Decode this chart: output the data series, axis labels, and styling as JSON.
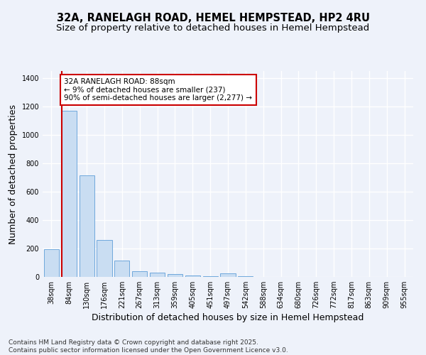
{
  "title_line1": "32A, RANELAGH ROAD, HEMEL HEMPSTEAD, HP2 4RU",
  "title_line2": "Size of property relative to detached houses in Hemel Hempstead",
  "xlabel": "Distribution of detached houses by size in Hemel Hempstead",
  "ylabel": "Number of detached properties",
  "categories": [
    "38sqm",
    "84sqm",
    "130sqm",
    "176sqm",
    "221sqm",
    "267sqm",
    "313sqm",
    "359sqm",
    "405sqm",
    "451sqm",
    "497sqm",
    "542sqm",
    "588sqm",
    "634sqm",
    "680sqm",
    "726sqm",
    "772sqm",
    "817sqm",
    "863sqm",
    "909sqm",
    "955sqm"
  ],
  "values": [
    195,
    1170,
    715,
    260,
    115,
    40,
    30,
    20,
    8,
    5,
    25,
    5,
    0,
    0,
    0,
    0,
    0,
    0,
    0,
    0,
    0
  ],
  "bar_color": "#c9ddf2",
  "bar_edge_color": "#6fa8dc",
  "red_line_bar_index": 1,
  "annotation_text": "32A RANELAGH ROAD: 88sqm\n← 9% of detached houses are smaller (237)\n90% of semi-detached houses are larger (2,277) →",
  "annotation_box_facecolor": "#ffffff",
  "annotation_border_color": "#cc0000",
  "red_line_color": "#cc0000",
  "ylim": [
    0,
    1450
  ],
  "yticks": [
    0,
    200,
    400,
    600,
    800,
    1000,
    1200,
    1400
  ],
  "footer_line1": "Contains HM Land Registry data © Crown copyright and database right 2025.",
  "footer_line2": "Contains public sector information licensed under the Open Government Licence v3.0.",
  "bg_color": "#eef2fa",
  "grid_color": "#ffffff",
  "title_fontsize": 10.5,
  "subtitle_fontsize": 9.5,
  "axis_label_fontsize": 9,
  "tick_fontsize": 7,
  "annotation_fontsize": 7.5,
  "footer_fontsize": 6.5
}
